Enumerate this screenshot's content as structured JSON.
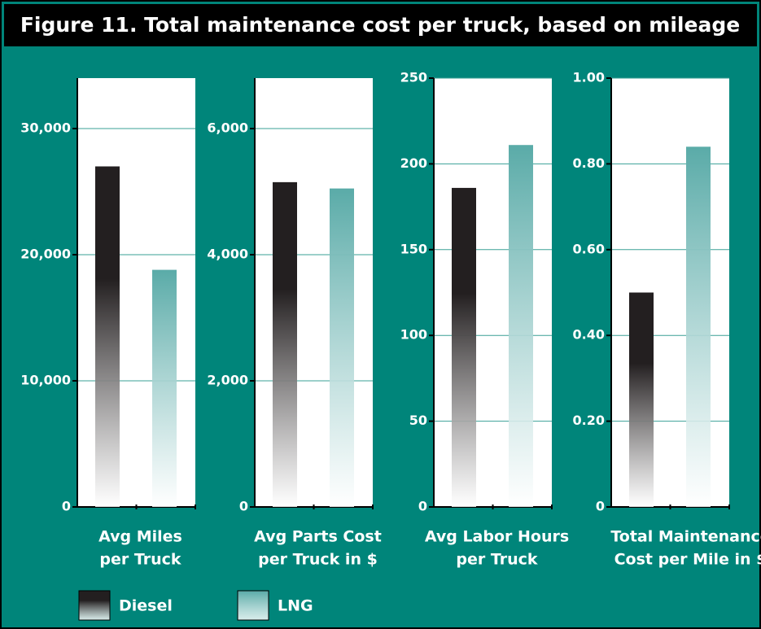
{
  "title": "Figure 11.  Total maintenance cost per truck, based on mileage",
  "legend": [
    {
      "name": "Diesel",
      "color": "#231f20"
    },
    {
      "name": "LNG",
      "color": "#5aaba8"
    }
  ],
  "chart_data": [
    {
      "type": "bar",
      "xlabel": [
        "Avg Miles",
        "per Truck"
      ],
      "series": [
        {
          "values": [
            27000
          ]
        },
        {
          "values": [
            18800
          ]
        }
      ],
      "ylim": [
        0,
        34000
      ],
      "grid": true,
      "yticks": [
        0,
        {
          "value": 10000,
          "label": "10,000"
        },
        {
          "value": 20000,
          "label": "20,000"
        },
        {
          "value": 30000,
          "label": "30,000"
        }
      ]
    },
    {
      "type": "bar",
      "xlabel": [
        "Avg Parts Cost",
        "per Truck in $"
      ],
      "series": [
        {
          "values": [
            5150
          ]
        },
        {
          "values": [
            5050
          ]
        }
      ],
      "ylim": [
        0,
        6800
      ],
      "grid": true,
      "yticks": [
        0,
        {
          "value": 2000,
          "label": "2,000"
        },
        {
          "value": 4000,
          "label": "4,000"
        },
        {
          "value": 6000,
          "label": "6,000"
        }
      ]
    },
    {
      "type": "bar",
      "xlabel": [
        "Avg Labor Hours",
        "per Truck"
      ],
      "series": [
        {
          "values": [
            186
          ]
        },
        {
          "values": [
            211
          ]
        }
      ],
      "ylim": [
        0,
        250
      ],
      "grid": true,
      "yticks": [
        0,
        50,
        100,
        150,
        200,
        250
      ]
    },
    {
      "type": "bar",
      "xlabel": [
        "Total Maintenance",
        "Cost per Mile in $"
      ],
      "series": [
        {
          "values": [
            0.5
          ]
        },
        {
          "values": [
            0.84
          ]
        }
      ],
      "ylim": [
        0,
        1.0
      ],
      "grid": true,
      "yticks": [
        0,
        {
          "value": 0.2,
          "label": "0.20"
        },
        {
          "value": 0.4,
          "label": "0.40"
        },
        {
          "value": 0.6,
          "label": "0.60"
        },
        {
          "value": 0.8,
          "label": "0.80"
        },
        {
          "value": 1.0,
          "label": "1.00"
        }
      ]
    }
  ]
}
